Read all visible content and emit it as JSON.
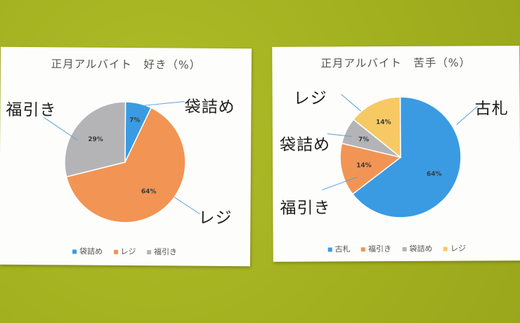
{
  "colors": {
    "blue": "#3a9be3",
    "orange": "#f29454",
    "gray": "#b4b4b7",
    "yellow": "#f7c964"
  },
  "chart_data": [
    {
      "type": "pie",
      "title": "正月アルバイト　好き（%）",
      "categories": [
        "袋詰め",
        "レジ",
        "福引き"
      ],
      "values": [
        7,
        64,
        29
      ],
      "value_labels": [
        "7%",
        "64%",
        "29%"
      ],
      "colors": [
        "#3a9be3",
        "#f29454",
        "#b4b4b7"
      ],
      "legend": "bottom",
      "annotations": [
        "袋詰め",
        "レジ",
        "福引き"
      ]
    },
    {
      "type": "pie",
      "title": "正月アルバイト　苦手（%）",
      "categories": [
        "古札",
        "福引き",
        "袋詰め",
        "レジ"
      ],
      "values": [
        64,
        14,
        7,
        14
      ],
      "value_labels": [
        "64%",
        "14%",
        "7%",
        "14%"
      ],
      "colors": [
        "#3a9be3",
        "#f29454",
        "#b4b4b7",
        "#f7c964"
      ],
      "legend": "bottom",
      "annotations": [
        "古札",
        "福引き",
        "袋詰め",
        "レジ"
      ]
    }
  ]
}
